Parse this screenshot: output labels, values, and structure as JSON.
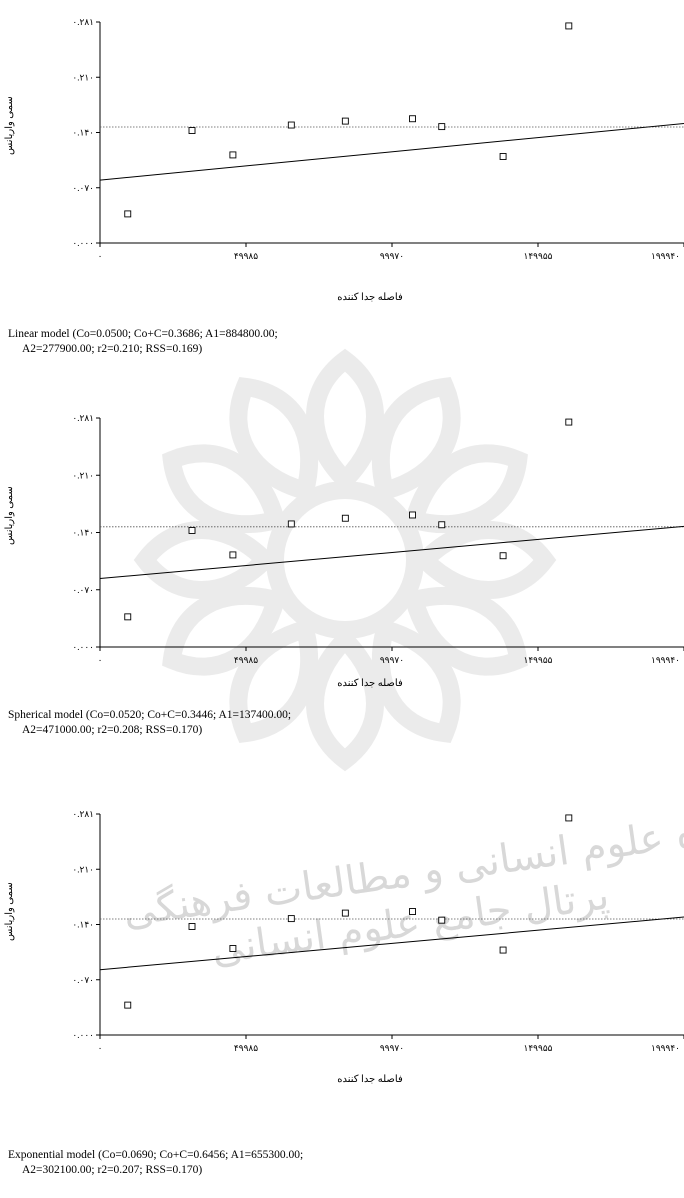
{
  "chart_data": [
    {
      "type": "scatter",
      "title": "",
      "ylabel": "سمی واریانس",
      "xlabel": "فاصله جدا کننده",
      "ylim": [
        0,
        0.281
      ],
      "xlim": [
        0,
        199940
      ],
      "y_ticks": [
        "۰.۰۰۰",
        "۰.۰۷۰",
        "۰.۱۴۰",
        "۰.۲۱۰",
        "۰.۲۸۱"
      ],
      "x_ticks": [
        "۰",
        "۴۹۹۸۵",
        "۹۹۹۷۰",
        "۱۴۹۹۵۵",
        "۱۹۹۹۴۰"
      ],
      "sill": 0.1475,
      "points": [
        {
          "x": 9500,
          "y": 0.037
        },
        {
          "x": 31500,
          "y": 0.143
        },
        {
          "x": 45500,
          "y": 0.112
        },
        {
          "x": 65500,
          "y": 0.15
        },
        {
          "x": 84000,
          "y": 0.155
        },
        {
          "x": 107000,
          "y": 0.158
        },
        {
          "x": 117000,
          "y": 0.148
        },
        {
          "x": 138000,
          "y": 0.11
        },
        {
          "x": 160500,
          "y": 0.276
        }
      ],
      "model_line": [
        [
          0,
          0.08
        ],
        [
          199940,
          0.152
        ]
      ],
      "caption_line1": "Linear model (Co=0.0500; Co+C=0.3686; A1=884800.00;",
      "caption_line2": "A2=277900.00; r2=0.210; RSS=0.169)"
    },
    {
      "type": "scatter",
      "title": "",
      "ylabel": "سمی واریانس",
      "xlabel": "فاصله جدا کننده",
      "ylim": [
        0,
        0.281
      ],
      "xlim": [
        0,
        199940
      ],
      "y_ticks": [
        "۰.۰۰۰",
        "۰.۰۷۰",
        "۰.۱۴۰",
        "۰.۲۱۰",
        "۰.۲۸۱"
      ],
      "x_ticks": [
        "۰",
        "۴۹۹۸۵",
        "۹۹۹۷۰",
        "۱۴۹۹۵۵",
        "۱۹۹۹۴۰"
      ],
      "sill": 0.1475,
      "points": [
        {
          "x": 9500,
          "y": 0.037
        },
        {
          "x": 31500,
          "y": 0.143
        },
        {
          "x": 45500,
          "y": 0.113
        },
        {
          "x": 65500,
          "y": 0.151
        },
        {
          "x": 84000,
          "y": 0.158
        },
        {
          "x": 107000,
          "y": 0.162
        },
        {
          "x": 117000,
          "y": 0.15
        },
        {
          "x": 138000,
          "y": 0.112
        },
        {
          "x": 160500,
          "y": 0.276
        }
      ],
      "model_line": [
        [
          0,
          0.084
        ],
        [
          199940,
          0.148
        ]
      ],
      "caption_line1": "Spherical model (Co=0.0520; Co+C=0.3446; A1=137400.00;",
      "caption_line2": "A2=471000.00; r2=0.208; RSS=0.170)"
    },
    {
      "type": "scatter",
      "title": "",
      "ylabel": "سمی واریانس",
      "xlabel": "فاصله جدا کننده",
      "ylim": [
        0,
        0.281
      ],
      "xlim": [
        0,
        199940
      ],
      "y_ticks": [
        "۰.۰۰۰",
        "۰.۰۷۰",
        "۰.۱۴۰",
        "۰.۲۱۰",
        "۰.۲۸۱"
      ],
      "x_ticks": [
        "۰",
        "۴۹۹۸۵",
        "۹۹۹۷۰",
        "۱۴۹۹۵۵",
        "۱۹۹۹۴۰"
      ],
      "sill": 0.1475,
      "points": [
        {
          "x": 9500,
          "y": 0.038
        },
        {
          "x": 31500,
          "y": 0.138
        },
        {
          "x": 45500,
          "y": 0.11
        },
        {
          "x": 65500,
          "y": 0.148
        },
        {
          "x": 84000,
          "y": 0.155
        },
        {
          "x": 107000,
          "y": 0.157
        },
        {
          "x": 117000,
          "y": 0.146
        },
        {
          "x": 138000,
          "y": 0.108
        },
        {
          "x": 160500,
          "y": 0.276
        }
      ],
      "model_line": [
        [
          0,
          0.083
        ],
        [
          199940,
          0.15
        ]
      ],
      "caption_line1": "Exponential model (Co=0.0690; Co+C=0.6456; A1=655300.00;",
      "caption_line2": "A2=302100.00; r2=0.207; RSS=0.170)"
    }
  ],
  "watermark": {
    "line1": "پژوهشگاه علوم انسانی و مطالعات فرهنگی",
    "line2": "پرتال جامع علوم انسانی",
    "color": "#d4d4d4"
  }
}
